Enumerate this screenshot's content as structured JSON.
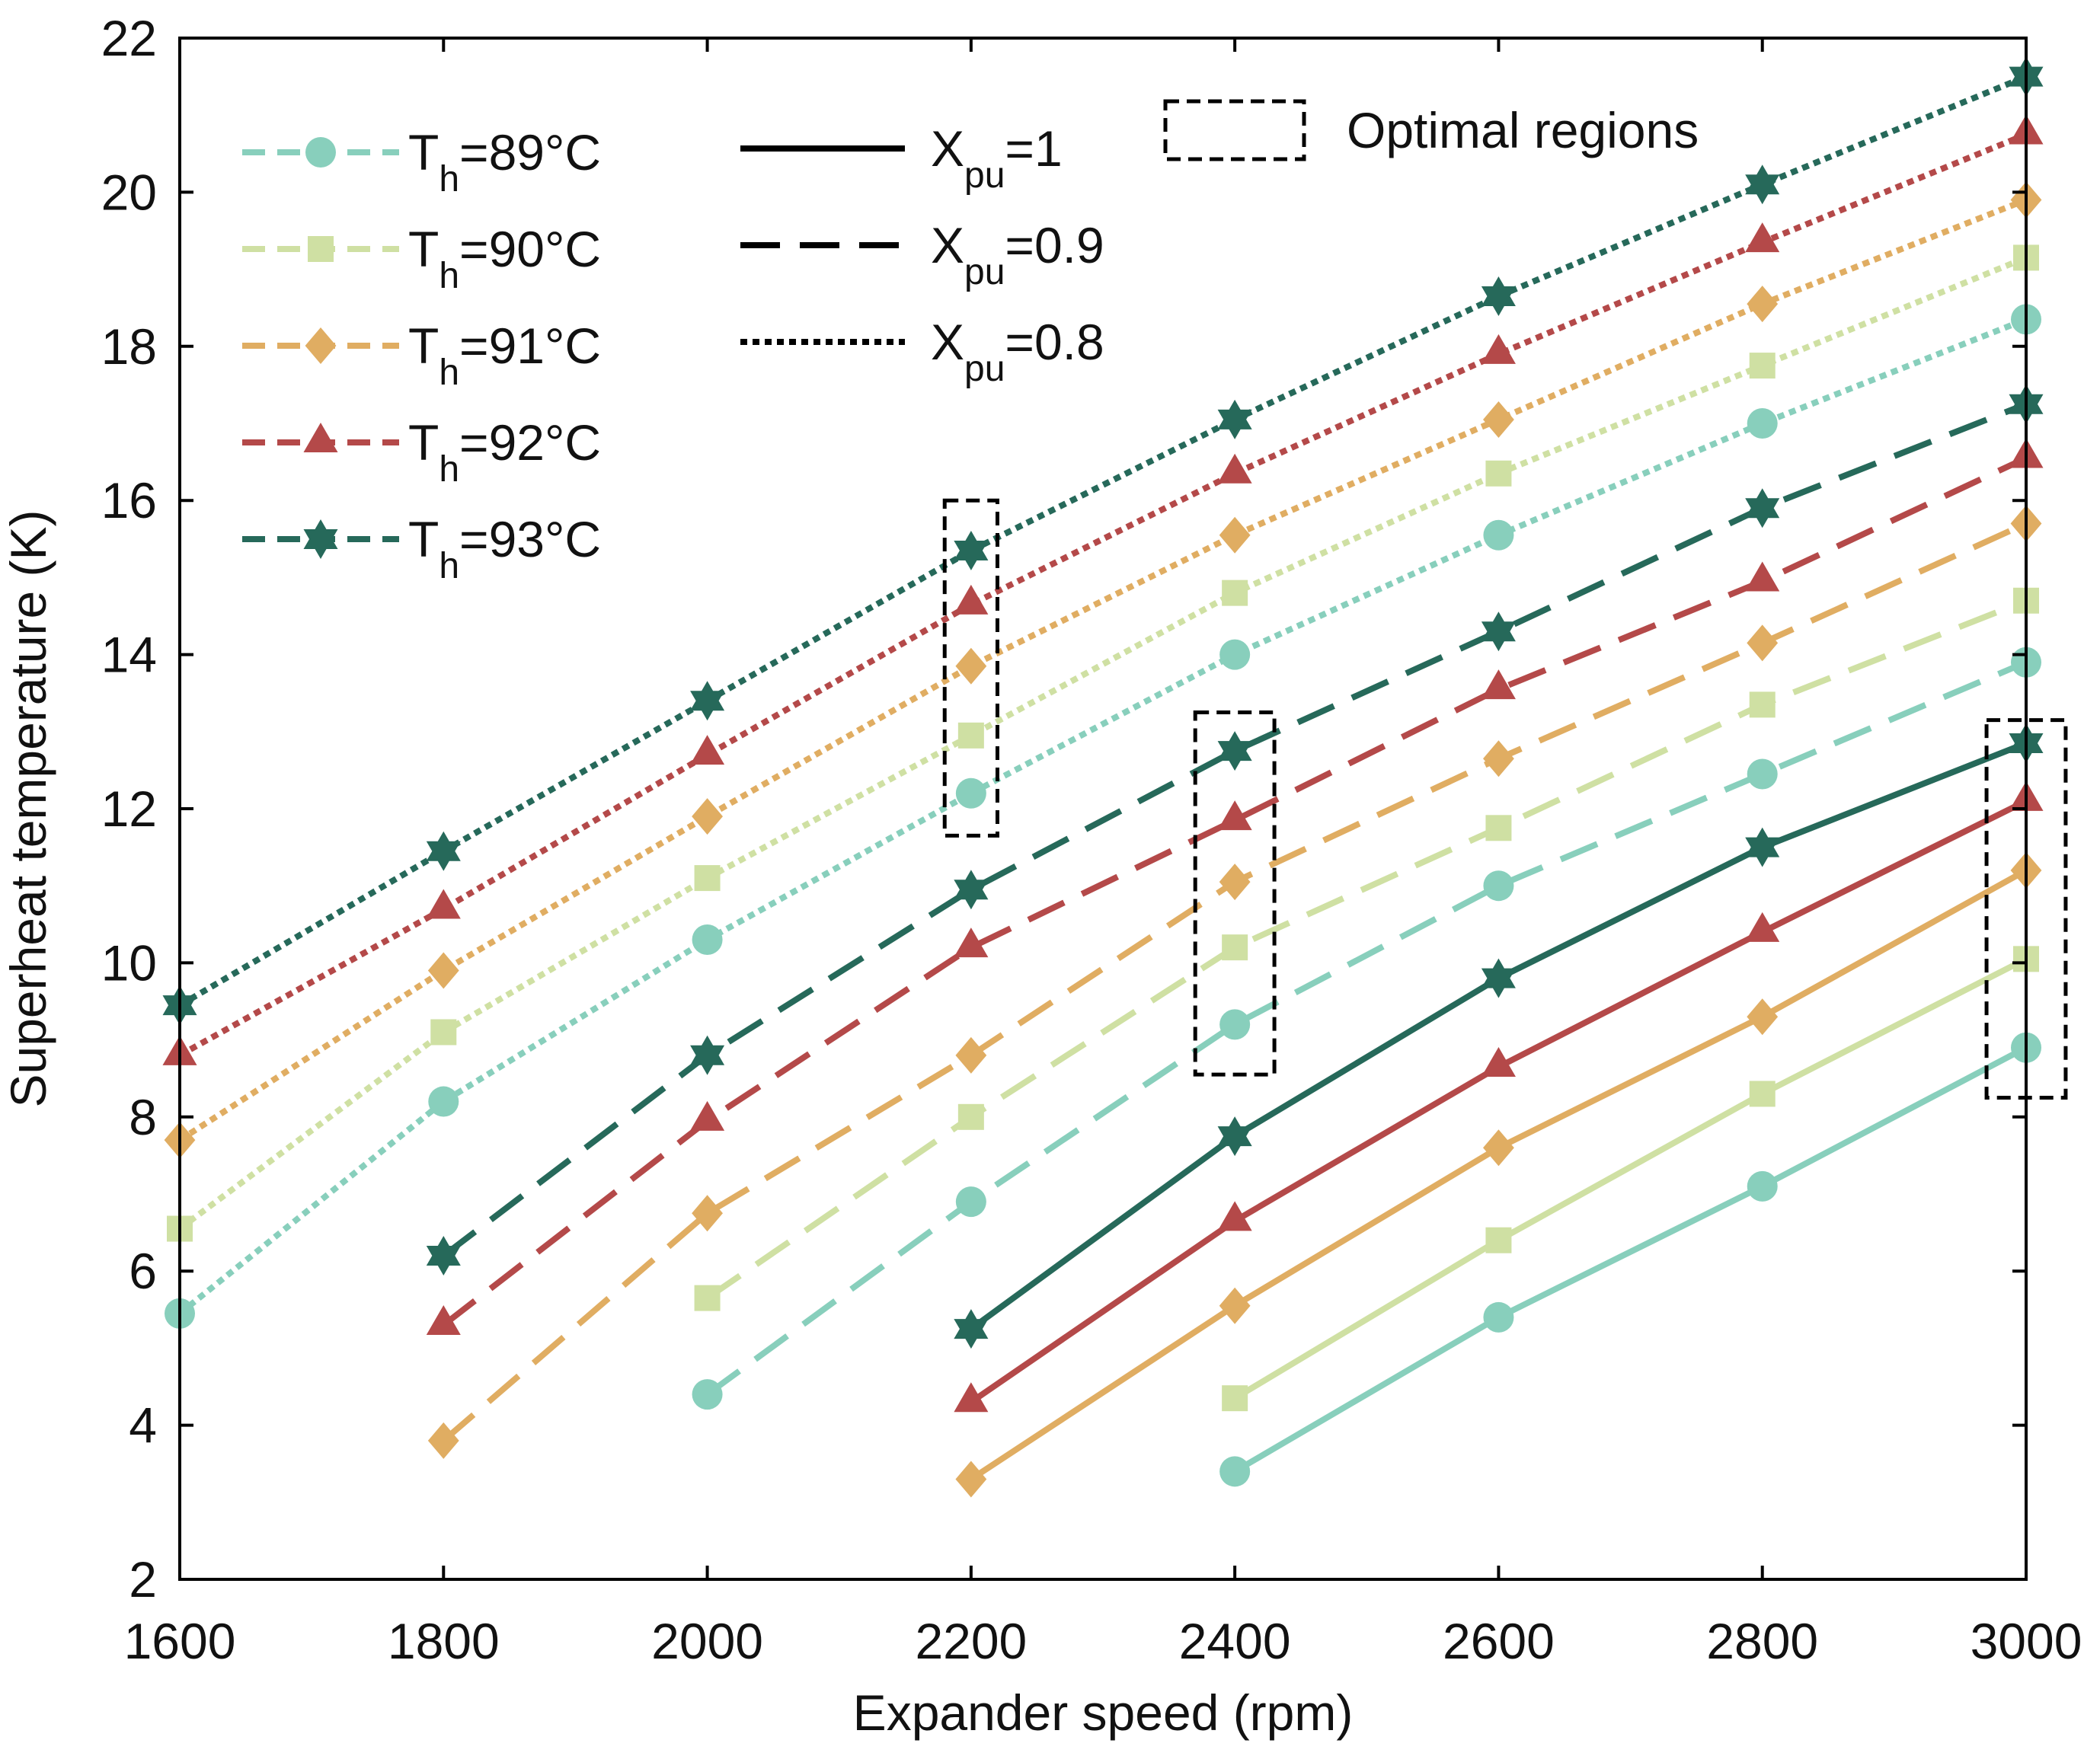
{
  "chart_data": {
    "type": "line",
    "title": "",
    "xlabel": "Expander speed (rpm)",
    "ylabel": "Superheat temperature (K)",
    "xlim": [
      1600,
      3000
    ],
    "ylim": [
      2,
      22
    ],
    "xticks": [
      1600,
      1800,
      2000,
      2200,
      2400,
      2600,
      2800,
      3000
    ],
    "yticks": [
      2,
      4,
      6,
      8,
      10,
      12,
      14,
      16,
      18,
      20,
      22
    ],
    "grid": false,
    "x": [
      1600,
      1800,
      2000,
      2200,
      2400,
      2600,
      2800,
      3000
    ],
    "temperatures": [
      {
        "key": "89",
        "base": "T",
        "sub": "h",
        "tail": "=89°C",
        "color": "#88cfbc",
        "marker": "circle"
      },
      {
        "key": "90",
        "base": "T",
        "sub": "h",
        "tail": "=90°C",
        "color": "#cfe0a3",
        "marker": "square"
      },
      {
        "key": "91",
        "base": "T",
        "sub": "h",
        "tail": "=91°C",
        "color": "#e0ad62",
        "marker": "diamond"
      },
      {
        "key": "92",
        "base": "T",
        "sub": "h",
        "tail": "=92°C",
        "color": "#b44949",
        "marker": "triangle"
      },
      {
        "key": "93",
        "base": "T",
        "sub": "h",
        "tail": "=93°C",
        "color": "#26695a",
        "marker": "star"
      }
    ],
    "line_styles": [
      {
        "key": "1",
        "base": "X",
        "sub": "pu",
        "tail": "=1",
        "dash": "solid"
      },
      {
        "key": "0.9",
        "base": "X",
        "sub": "pu",
        "tail": "=0.9",
        "dash": "dashed"
      },
      {
        "key": "0.8",
        "base": "X",
        "sub": "pu",
        "tail": "=0.8",
        "dash": "dotted"
      }
    ],
    "optimal_regions_label": "Optimal regions",
    "optimal_regions": [
      {
        "x": [
          2180,
          2220
        ],
        "y": [
          11.65,
          16.0
        ]
      },
      {
        "x": [
          2370,
          2430
        ],
        "y": [
          8.55,
          13.25
        ]
      },
      {
        "x": [
          2970,
          3030
        ],
        "y": [
          8.25,
          13.15
        ]
      }
    ],
    "series": [
      {
        "name": "Th=89°C, Xpu=1",
        "temp": "89",
        "xpu": "1",
        "values": [
          null,
          null,
          null,
          null,
          3.4,
          5.4,
          7.1,
          8.9
        ]
      },
      {
        "name": "Th=90°C, Xpu=1",
        "temp": "90",
        "xpu": "1",
        "values": [
          null,
          null,
          null,
          null,
          4.35,
          6.4,
          8.3,
          10.05
        ]
      },
      {
        "name": "Th=91°C, Xpu=1",
        "temp": "91",
        "xpu": "1",
        "values": [
          null,
          null,
          null,
          3.3,
          5.55,
          7.6,
          9.3,
          11.2
        ]
      },
      {
        "name": "Th=92°C, Xpu=1",
        "temp": "92",
        "xpu": "1",
        "values": [
          null,
          null,
          null,
          4.3,
          6.65,
          8.65,
          10.4,
          12.1
        ]
      },
      {
        "name": "Th=93°C, Xpu=1",
        "temp": "93",
        "xpu": "1",
        "values": [
          null,
          null,
          null,
          5.25,
          7.75,
          9.8,
          11.5,
          12.85
        ]
      },
      {
        "name": "Th=89°C, Xpu=0.9",
        "temp": "89",
        "xpu": "0.9",
        "values": [
          null,
          null,
          4.4,
          6.9,
          9.2,
          11.0,
          12.45,
          13.9
        ]
      },
      {
        "name": "Th=90°C, Xpu=0.9",
        "temp": "90",
        "xpu": "0.9",
        "values": [
          null,
          null,
          5.65,
          8.0,
          10.2,
          11.75,
          13.35,
          14.7
        ]
      },
      {
        "name": "Th=91°C, Xpu=0.9",
        "temp": "91",
        "xpu": "0.9",
        "values": [
          null,
          3.8,
          6.75,
          8.8,
          11.05,
          12.65,
          14.15,
          15.7
        ]
      },
      {
        "name": "Th=92°C, Xpu=0.9",
        "temp": "92",
        "xpu": "0.9",
        "values": [
          null,
          5.3,
          7.95,
          10.2,
          11.85,
          13.55,
          14.95,
          16.55
        ]
      },
      {
        "name": "Th=93°C, Xpu=0.9",
        "temp": "93",
        "xpu": "0.9",
        "values": [
          null,
          6.2,
          8.8,
          10.95,
          12.75,
          14.3,
          15.9,
          17.25
        ]
      },
      {
        "name": "Th=89°C, Xpu=0.8",
        "temp": "89",
        "xpu": "0.8",
        "values": [
          5.45,
          8.2,
          10.3,
          12.2,
          14.0,
          15.55,
          17.0,
          18.35
        ]
      },
      {
        "name": "Th=90°C, Xpu=0.8",
        "temp": "90",
        "xpu": "0.8",
        "values": [
          6.55,
          9.1,
          11.1,
          12.95,
          14.8,
          16.35,
          17.75,
          19.15
        ]
      },
      {
        "name": "Th=91°C, Xpu=0.8",
        "temp": "91",
        "xpu": "0.8",
        "values": [
          7.7,
          9.9,
          11.9,
          13.85,
          15.55,
          17.05,
          18.55,
          19.9
        ]
      },
      {
        "name": "Th=92°C, Xpu=0.8",
        "temp": "92",
        "xpu": "0.8",
        "values": [
          8.8,
          10.7,
          12.7,
          14.65,
          16.35,
          17.9,
          19.35,
          20.75
        ]
      },
      {
        "name": "Th=93°C, Xpu=0.8",
        "temp": "93",
        "xpu": "0.8",
        "values": [
          9.45,
          11.45,
          13.4,
          15.35,
          17.05,
          18.65,
          20.1,
          21.5
        ]
      }
    ]
  }
}
